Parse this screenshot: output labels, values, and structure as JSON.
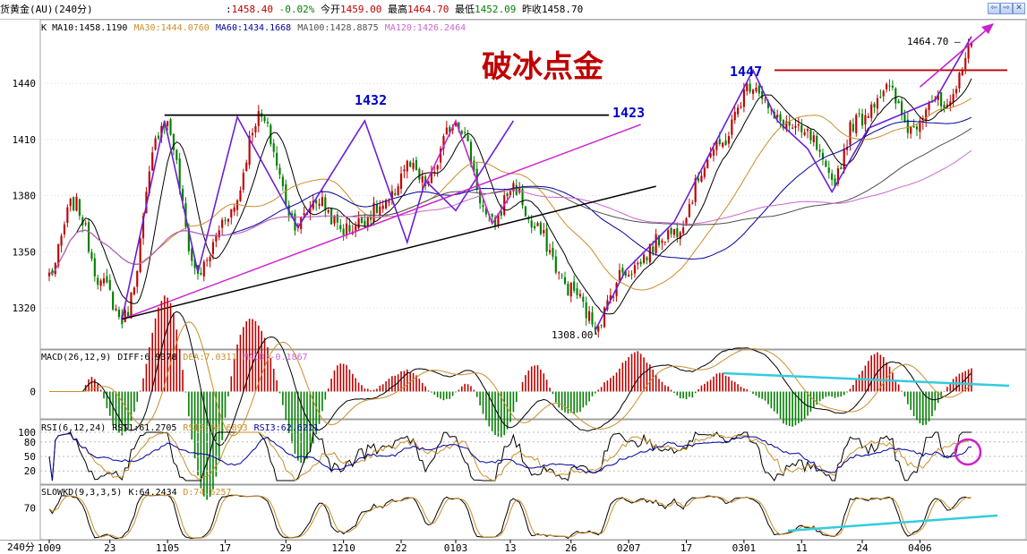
{
  "window": {
    "title": "货黄金(AU)(240分)",
    "quote": [
      {
        "label": "",
        "value": "1458.40",
        "color": "red"
      },
      {
        "label": "",
        "value": "-0.02%",
        "color": "green"
      },
      {
        "label": "今开",
        "value": "1459.00",
        "color": "red"
      },
      {
        "label": "最高",
        "value": "1464.70",
        "color": "red"
      },
      {
        "label": "最低",
        "value": "1452.09",
        "color": "green"
      },
      {
        "label": "昨收",
        "value": "1458.70",
        "color": "black"
      }
    ],
    "buttons": [
      {
        "name": "scroll-left-button",
        "glyph": "⇦"
      },
      {
        "name": "scroll-right-button",
        "glyph": "⇨"
      },
      {
        "name": "close-button",
        "glyph": "✕"
      }
    ]
  },
  "colors": {
    "up": "#c00000",
    "down": "#008000",
    "ma10": "#000000",
    "ma30": "#c88f2a",
    "ma60": "#0000a0",
    "ma100": "#505050",
    "ma120": "#cc66cc",
    "drawing_purple": "#6a1fd6",
    "drawing_magenta": "#cc22cc",
    "drawing_black": "#000000",
    "drawing_red": "#c00000",
    "drawing_cyan": "#33ccdd",
    "annotation_blue": "#0000cc"
  },
  "chart_data": [
    {
      "panel": "price",
      "type": "candlestick",
      "indicator_label": "K",
      "ma_legend": [
        {
          "label": "MA10:1458.1190",
          "color": "ma10"
        },
        {
          "label": "MA30:1444.0760",
          "color": "ma30"
        },
        {
          "label": "MA60:1434.1668",
          "color": "ma60"
        },
        {
          "label": "MA100:1428.8875",
          "color": "ma100"
        },
        {
          "label": "MA120:1426.2464",
          "color": "ma120"
        }
      ],
      "ylim": [
        1298,
        1474
      ],
      "y_ticks": [
        1320,
        1350,
        1380,
        1410,
        1440
      ],
      "pivots": [
        {
          "i": 0,
          "v": 1338
        },
        {
          "i": 8,
          "v": 1376
        },
        {
          "i": 18,
          "v": 1332
        },
        {
          "i": 24,
          "v": 1314
        },
        {
          "i": 38,
          "v": 1420
        },
        {
          "i": 49,
          "v": 1339
        },
        {
          "i": 60,
          "v": 1372
        },
        {
          "i": 69,
          "v": 1422
        },
        {
          "i": 82,
          "v": 1365
        },
        {
          "i": 88,
          "v": 1378
        },
        {
          "i": 97,
          "v": 1362
        },
        {
          "i": 111,
          "v": 1374
        },
        {
          "i": 118,
          "v": 1396
        },
        {
          "i": 124,
          "v": 1386
        },
        {
          "i": 134,
          "v": 1420
        },
        {
          "i": 146,
          "v": 1365
        },
        {
          "i": 153,
          "v": 1385
        },
        {
          "i": 160,
          "v": 1362
        },
        {
          "i": 172,
          "v": 1330
        },
        {
          "i": 180,
          "v": 1312
        },
        {
          "i": 190,
          "v": 1340
        },
        {
          "i": 205,
          "v": 1360
        },
        {
          "i": 220,
          "v": 1405
        },
        {
          "i": 232,
          "v": 1440
        },
        {
          "i": 240,
          "v": 1420
        },
        {
          "i": 250,
          "v": 1412
        },
        {
          "i": 258,
          "v": 1388
        },
        {
          "i": 266,
          "v": 1420
        },
        {
          "i": 276,
          "v": 1437
        },
        {
          "i": 284,
          "v": 1416
        },
        {
          "i": 291,
          "v": 1432
        },
        {
          "i": 296,
          "v": 1425
        },
        {
          "i": 304,
          "v": 1462
        }
      ],
      "bar_count": 305,
      "annotations": [
        {
          "text": "破冰点金",
          "kind": "title"
        },
        {
          "text": "1432",
          "kind": "level"
        },
        {
          "text": "1423",
          "kind": "level"
        },
        {
          "text": "1447",
          "kind": "level"
        },
        {
          "text": "1464.70",
          "kind": "high_marker",
          "value": 1464.7
        },
        {
          "text": "1308.00",
          "kind": "low_marker",
          "value": 1308.0
        }
      ],
      "drawn_levels": [
        {
          "value": 1423,
          "color": "drawing_black"
        },
        {
          "value": 1447,
          "color": "drawing_red"
        }
      ],
      "drawn_trendlines": [
        {
          "points": [
            [
              24,
              1314
            ],
            [
              195,
              1418
            ]
          ],
          "color": "drawing_magenta",
          "note": "support line"
        },
        {
          "points": [
            [
              24,
              1314
            ],
            [
              200,
              1385
            ]
          ],
          "color": "drawing_black"
        }
      ]
    },
    {
      "panel": "macd",
      "type": "histogram+line",
      "indicator_label": "MACD(26,12,9)",
      "legend": [
        {
          "label": "DIFF:6.9378",
          "color": "ma10"
        },
        {
          "label": "DEA:7.0311",
          "color": "ma30"
        },
        {
          "label": "MACD:-0.1867",
          "color": "ma120"
        }
      ],
      "ylim": [
        -20,
        20
      ],
      "y_ticks": [
        0
      ]
    },
    {
      "panel": "rsi",
      "type": "line",
      "indicator_label": "RSI(6,12,24)",
      "legend": [
        {
          "label": "RSI1:61.2705",
          "color": "ma10"
        },
        {
          "label": "RSI2:64.6893",
          "color": "ma30"
        },
        {
          "label": "RSI3:62.6211",
          "color": "ma60"
        }
      ],
      "ylim": [
        0,
        100
      ],
      "y_ticks": [
        20,
        50,
        80,
        100
      ]
    },
    {
      "panel": "kdj",
      "type": "line",
      "indicator_label": "SLOWKD(9,3,3,5)",
      "legend": [
        {
          "label": "K:64.2434",
          "color": "ma10"
        },
        {
          "label": "D:74.6257",
          "color": "ma30"
        }
      ],
      "ylim": [
        0,
        100
      ],
      "y_ticks": [
        70
      ]
    }
  ],
  "x_axis": {
    "period_label": "240分",
    "ticks": [
      {
        "label": "1009",
        "i": 0
      },
      {
        "label": "23",
        "i": 20
      },
      {
        "label": "1105",
        "i": 39
      },
      {
        "label": "17",
        "i": 58
      },
      {
        "label": "29",
        "i": 78
      },
      {
        "label": "1210",
        "i": 97
      },
      {
        "label": "22",
        "i": 116
      },
      {
        "label": "0103",
        "i": 134
      },
      {
        "label": "13",
        "i": 152
      },
      {
        "label": "26",
        "i": 172
      },
      {
        "label": "0207",
        "i": 191
      },
      {
        "label": "17",
        "i": 210
      },
      {
        "label": "0301",
        "i": 229
      },
      {
        "label": "11",
        "i": 248
      },
      {
        "label": "24",
        "i": 268
      },
      {
        "label": "0406",
        "i": 287
      }
    ]
  }
}
